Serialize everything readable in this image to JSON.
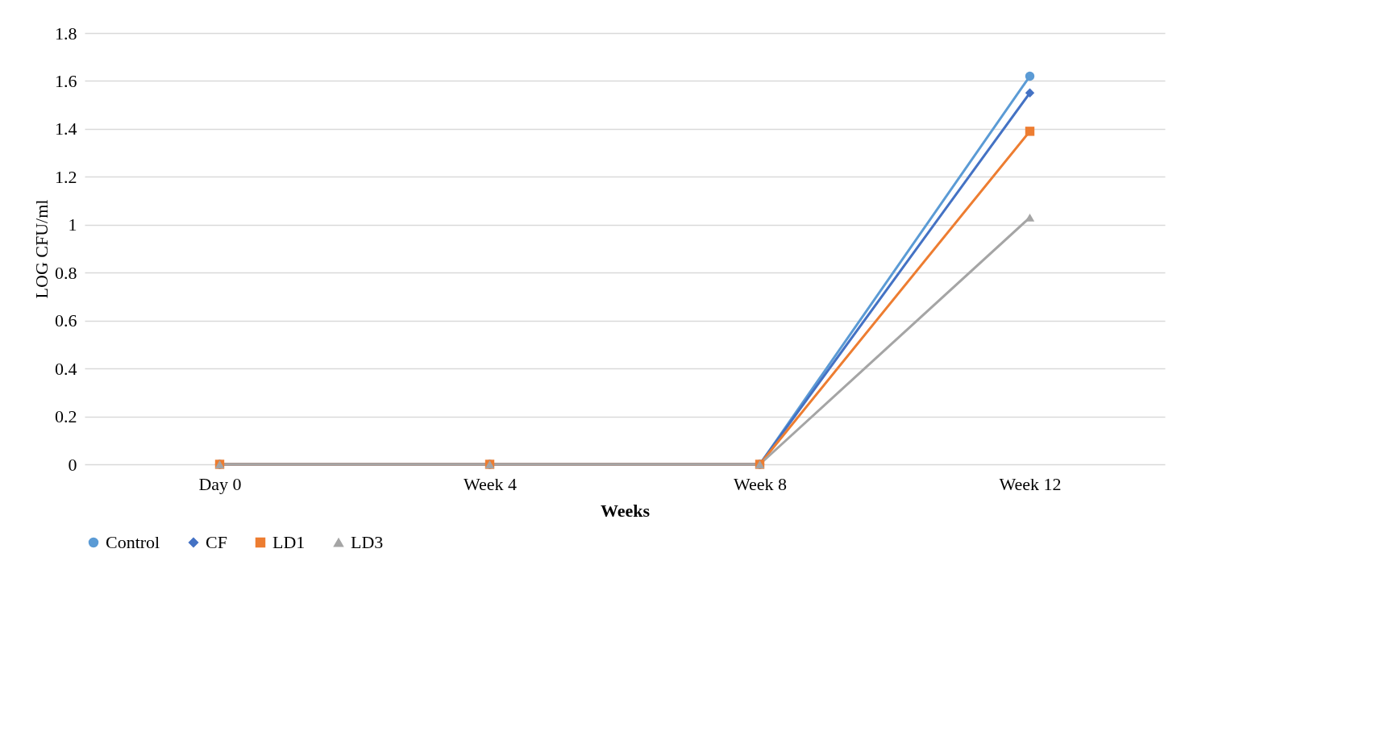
{
  "chart_data": {
    "type": "line",
    "xlabel": "Weeks",
    "ylabel": "LOG CFU/ml",
    "categories": [
      "Day 0",
      "Week 4",
      "Week 8",
      "Week 12"
    ],
    "series": [
      {
        "name": "Control",
        "color": "#5b9bd5",
        "marker": "circle",
        "values": [
          0,
          0,
          0,
          1.62
        ]
      },
      {
        "name": "CF",
        "color": "#4472c4",
        "marker": "diamond",
        "values": [
          0,
          0,
          0,
          1.55
        ]
      },
      {
        "name": "LD1",
        "color": "#ed7d31",
        "marker": "square",
        "values": [
          0,
          0,
          0,
          1.39
        ]
      },
      {
        "name": "LD3",
        "color": "#a5a5a5",
        "marker": "triangle",
        "values": [
          0,
          0,
          0,
          1.03
        ]
      }
    ],
    "ylim": [
      0,
      1.8
    ],
    "yticks": [
      0,
      0.2,
      0.4,
      0.6,
      0.8,
      1,
      1.2,
      1.4,
      1.6,
      1.8
    ],
    "grid": "y",
    "legend": "bottom"
  }
}
